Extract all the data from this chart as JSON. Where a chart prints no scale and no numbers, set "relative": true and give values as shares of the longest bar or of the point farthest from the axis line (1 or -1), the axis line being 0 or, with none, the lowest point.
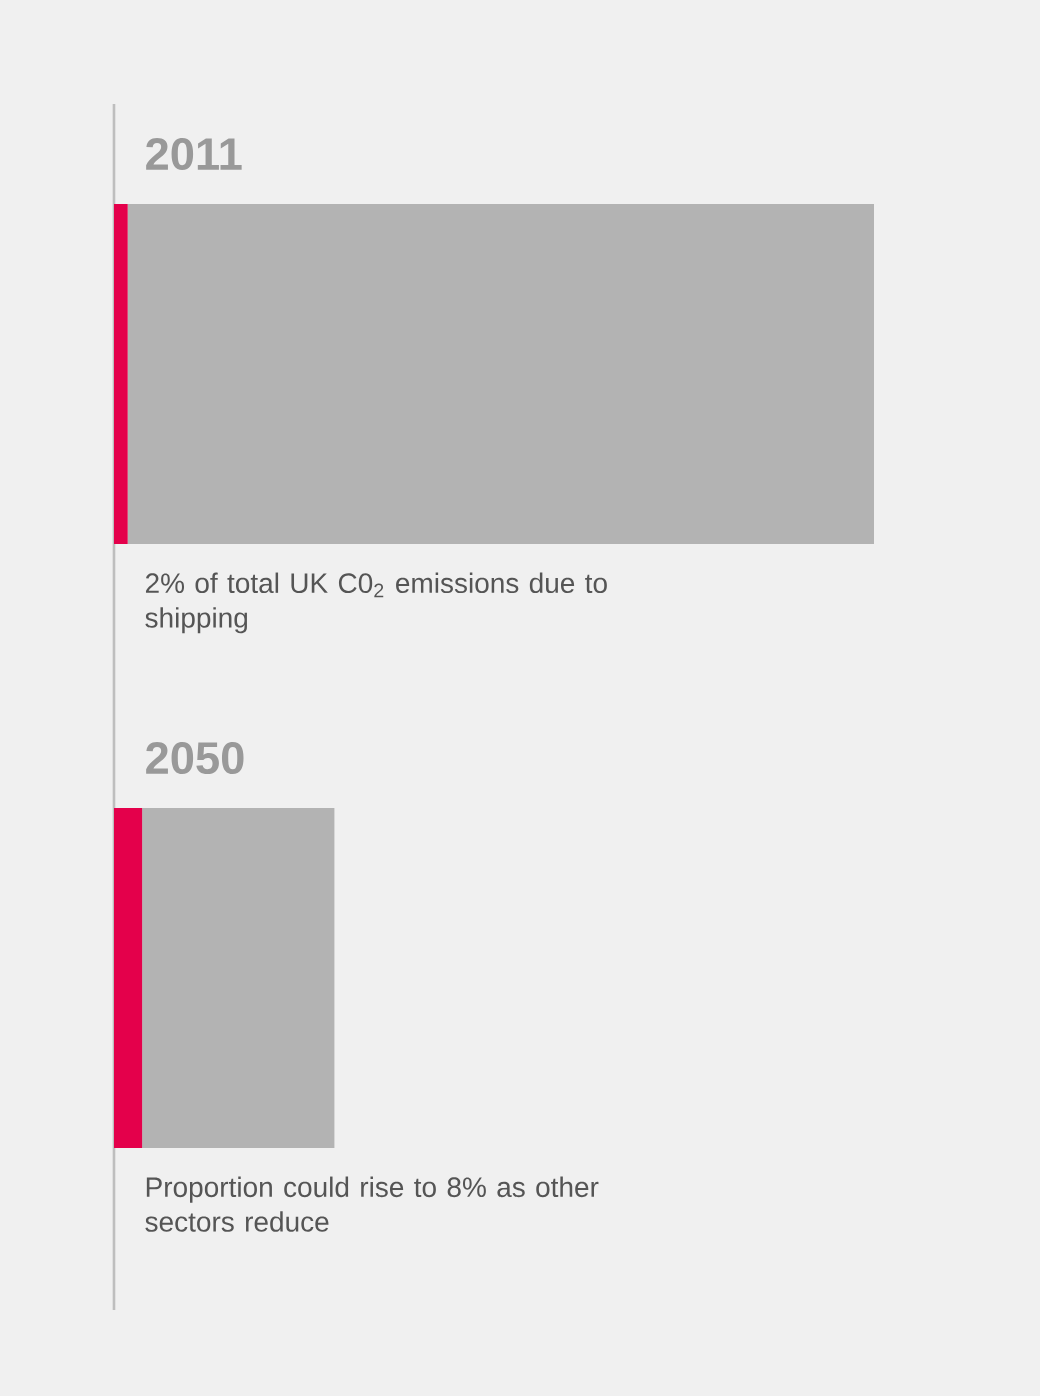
{
  "chart_data": {
    "type": "bar",
    "orientation": "horizontal",
    "stacked": true,
    "relative": true,
    "categories": [
      "2011",
      "2050"
    ],
    "series": [
      {
        "color": "#e4004b",
        "values": [
          0.018,
          0.037
        ]
      },
      {
        "color": "#b3b3b3",
        "values": [
          0.982,
          0.253
        ]
      }
    ],
    "annotations": [
      "2% of total UK C0$_{2}$ emissions due to shipping",
      "Proportion could rise to 8% as other sectors reduce"
    ]
  }
}
